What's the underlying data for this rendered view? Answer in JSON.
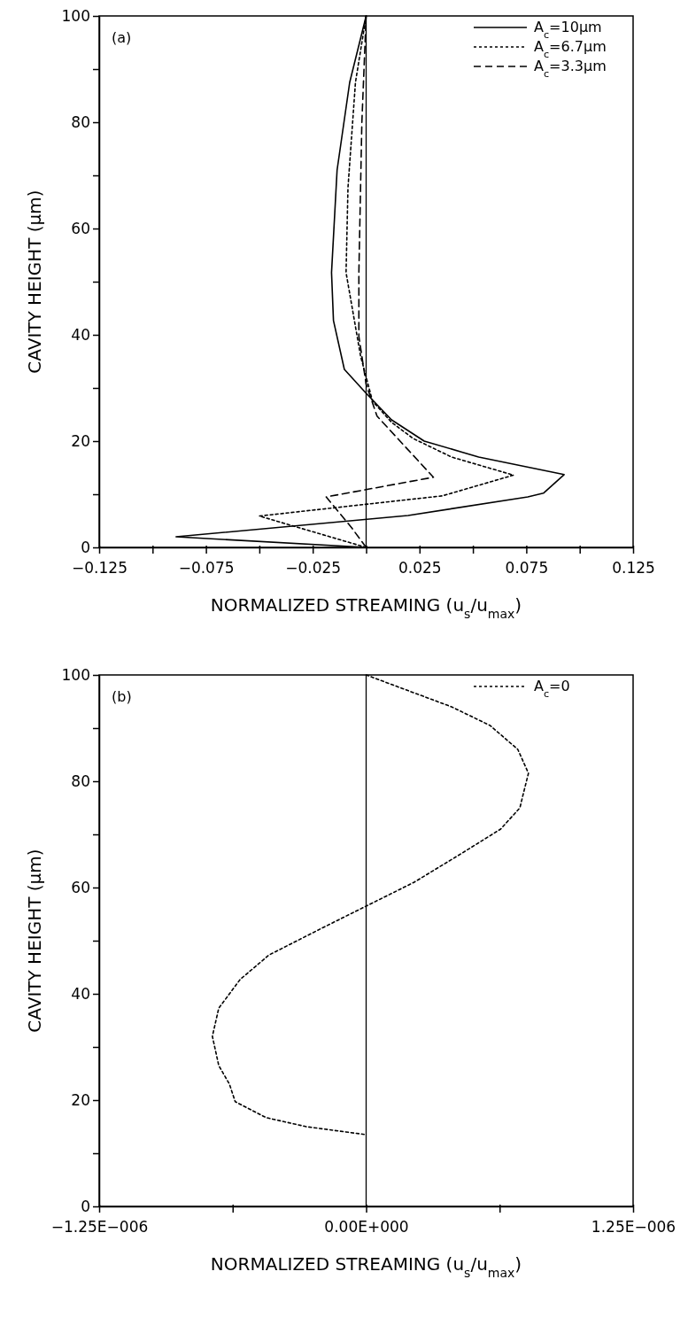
{
  "chart_data": [
    {
      "type": "line",
      "annotations": [
        "(a)"
      ],
      "xlabel": "NORMALIZED STREAMING (u$_{s}$/u$_{max}$)",
      "ylabel": "CAVITY HEIGHT (μm)",
      "xlim": [
        -0.125,
        0.125
      ],
      "xticks": [
        {
          "value": -0.125,
          "label": "−0.125"
        },
        {
          "value": -0.1,
          "label": null
        },
        {
          "value": -0.075,
          "label": "−0.075"
        },
        {
          "value": -0.05,
          "label": null
        },
        {
          "value": -0.025,
          "label": "−0.025"
        },
        {
          "value": 0,
          "label": null
        },
        {
          "value": 0.025,
          "label": "0.025"
        },
        {
          "value": 0.05,
          "label": null
        },
        {
          "value": 0.075,
          "label": "0.075"
        },
        {
          "value": 0.1,
          "label": null
        },
        {
          "value": 0.125,
          "label": "0.125"
        }
      ],
      "ylim": [
        0,
        100
      ],
      "yticks": [
        0,
        {
          "value": 10,
          "label": null
        },
        20,
        {
          "value": 30,
          "label": null
        },
        40,
        {
          "value": 50,
          "label": null
        },
        60,
        {
          "value": 70,
          "label": null
        },
        80,
        {
          "value": 90,
          "label": null
        },
        100
      ],
      "ref_lines": [
        {
          "axis": "x",
          "value": 0,
          "color": "#000000"
        }
      ],
      "legend": "top right",
      "grid": false,
      "marker": "none",
      "series": [
        {
          "name": "A$_{c}$=10μm",
          "color": "#000000",
          "line_style": "solid",
          "x": [
            0,
            -0.089,
            0.0196,
            0.0757,
            0.083,
            0.0927,
            0.0527,
            0.0272,
            0.0119,
            0,
            -0.0102,
            -0.0153,
            -0.0162,
            -0.0136,
            -0.0077,
            0
          ],
          "values": [
            0,
            2,
            6,
            9.5,
            10.2,
            13.7,
            17,
            20,
            24,
            29,
            33.5,
            42.7,
            51.7,
            71,
            87.5,
            100
          ]
        },
        {
          "name": "A$_{c}$=6.7μm",
          "color": "#000000",
          "line_style": "dotted",
          "x": [
            0,
            -0.05,
            0.0357,
            0.069,
            0.04,
            0.022,
            0.012,
            0.003,
            -0.0026,
            -0.0068,
            -0.0094,
            -0.0085,
            -0.005,
            0
          ],
          "values": [
            0,
            5.9,
            9.7,
            13.6,
            17,
            20.5,
            23.5,
            27.5,
            36,
            45.7,
            51.7,
            67.7,
            87.5,
            100
          ]
        },
        {
          "name": "A$_{c}$=3.3μm",
          "color": "#000000",
          "line_style": "dashed",
          "x": [
            0,
            -0.0068,
            -0.0187,
            0.0315,
            0.0051,
            0,
            -0.0034,
            -0.0034,
            -0.002,
            0
          ],
          "values": [
            0,
            3.7,
            9.5,
            13.2,
            24.7,
            30.7,
            39.7,
            51.7,
            80,
            100
          ]
        }
      ]
    },
    {
      "type": "line",
      "annotations": [
        "(b)"
      ],
      "xlabel": "NORMALIZED STREAMING (u$_{s}$/u$_{max}$)",
      "ylabel": "CAVITY HEIGHT (μm)",
      "xlim": [
        -1.25e-06,
        1.25e-06
      ],
      "xticks": [
        {
          "value": -1.25e-06,
          "label": "−1.25E−006"
        },
        {
          "value": -6.25e-07,
          "label": null
        },
        {
          "value": 0,
          "label": "0.00E+000"
        },
        {
          "value": 6.25e-07,
          "label": null
        },
        {
          "value": 1.25e-06,
          "label": "1.25E−006"
        }
      ],
      "ylim": [
        0,
        100
      ],
      "yticks": [
        0,
        {
          "value": 10,
          "label": null
        },
        20,
        {
          "value": 30,
          "label": null
        },
        40,
        {
          "value": 50,
          "label": null
        },
        60,
        {
          "value": 70,
          "label": null
        },
        80,
        {
          "value": 90,
          "label": null
        },
        100
      ],
      "ref_lines": [
        {
          "axis": "x",
          "value": 0,
          "color": "#000000"
        }
      ],
      "legend": "top right",
      "grid": false,
      "marker": "none",
      "series": [
        {
          "name": "A$_{c}$=0",
          "color": "#000000",
          "line_style": "dotted",
          "x": [
            0,
            4e-07,
            5.8e-07,
            7.1e-07,
            7.6e-07,
            7.35e-07,
            7.2e-07,
            6.3e-07,
            4.3e-07,
            2.25e-07,
            0,
            -2e-07,
            -4.55e-07,
            -5.9e-07,
            -6.9e-07,
            -7.2e-07,
            -6.9e-07,
            -6.4e-07,
            -6.13e-07,
            -4.68e-07,
            -2.8e-07,
            0
          ],
          "values": [
            100,
            94,
            90.5,
            86,
            81.5,
            77.5,
            75,
            71,
            66,
            61,
            56.5,
            52.5,
            47.3,
            42.7,
            37.3,
            32,
            26.5,
            23,
            19.7,
            16.7,
            15,
            13.5
          ]
        }
      ]
    }
  ]
}
